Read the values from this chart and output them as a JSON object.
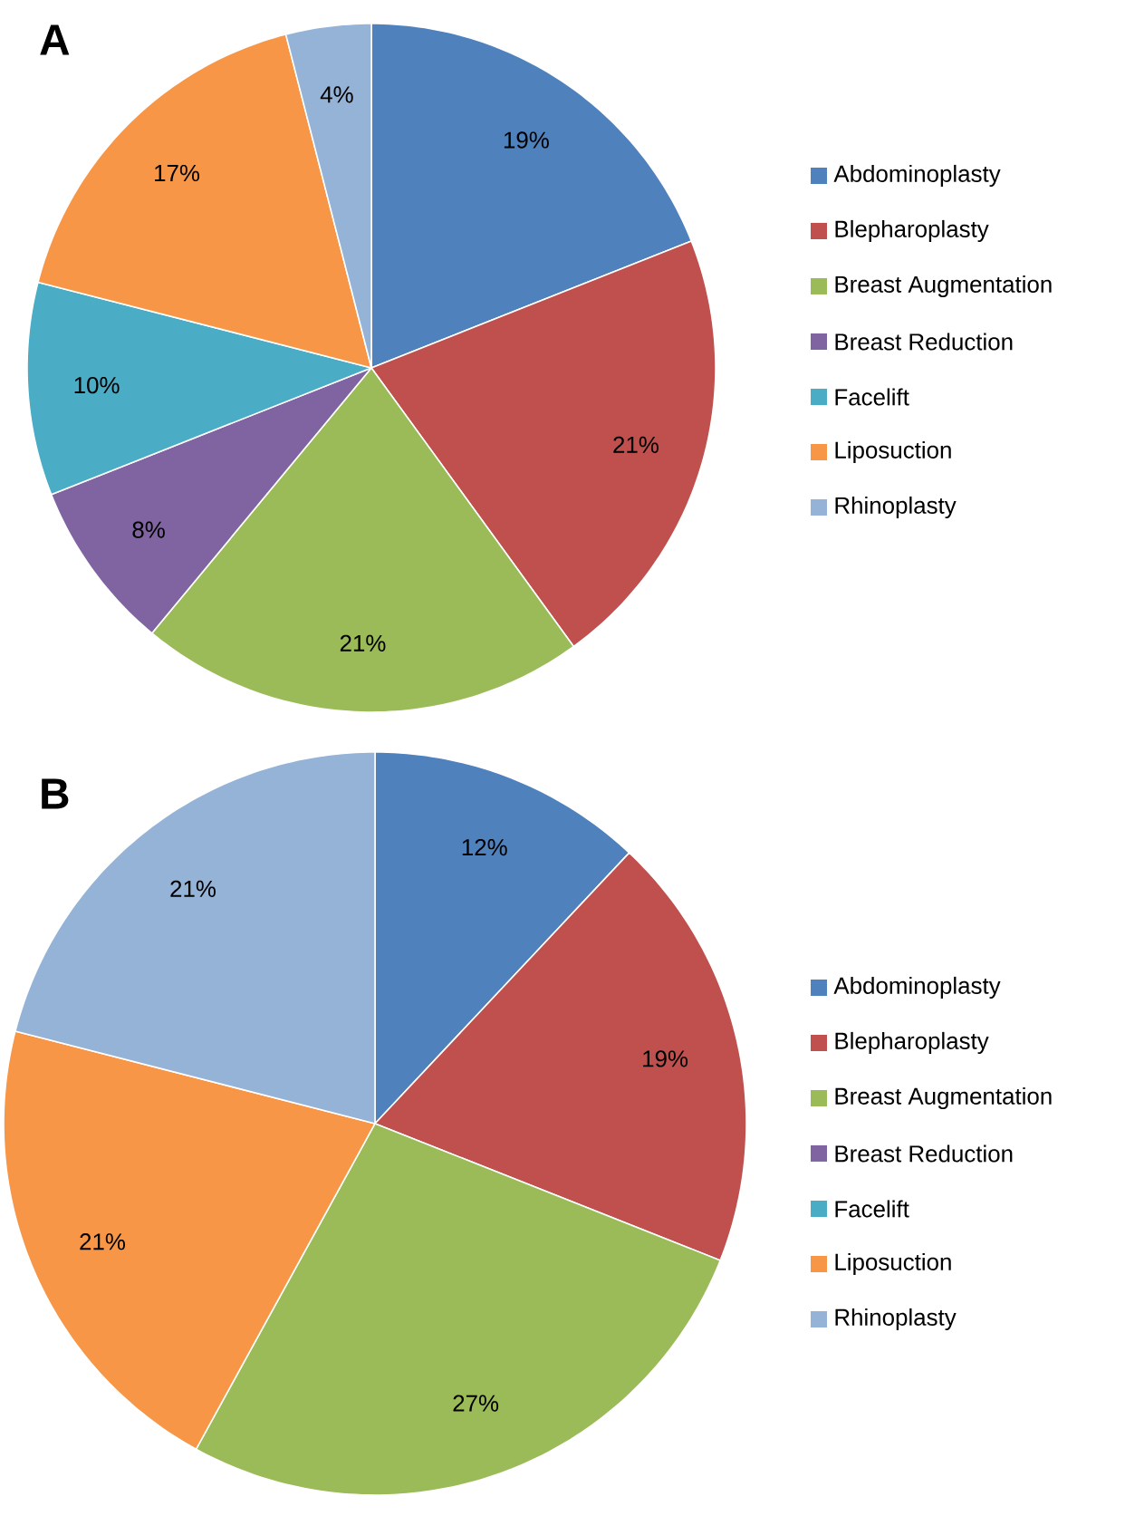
{
  "chart_data": [
    {
      "type": "pie",
      "title": "A",
      "categories": [
        "Abdominoplasty",
        "Blepharoplasty",
        "Breast Augmentation",
        "Breast Reduction",
        "Facelift",
        "Liposuction",
        "Rhinoplasty"
      ],
      "values": [
        19,
        21,
        21,
        8,
        10,
        17,
        4
      ],
      "value_labels": [
        "19%",
        "21%",
        "21%",
        "8%",
        "10%",
        "17%",
        "4%"
      ],
      "colors": [
        "#4f81bd",
        "#c0504d",
        "#9bbb59",
        "#8064a2",
        "#4bacc6",
        "#f79646",
        "#95b3d7"
      ],
      "legend": "right"
    },
    {
      "type": "pie",
      "title": "B",
      "categories": [
        "Abdominoplasty",
        "Blepharoplasty",
        "Breast Augmentation",
        "Breast Reduction",
        "Facelift",
        "Liposuction",
        "Rhinoplasty"
      ],
      "values": [
        12,
        19,
        27,
        0,
        0,
        21,
        21
      ],
      "value_labels": [
        "12%",
        "19%",
        "27%",
        null,
        null,
        "21%",
        "21%"
      ],
      "colors": [
        "#4f81bd",
        "#c0504d",
        "#9bbb59",
        "#8064a2",
        "#4bacc6",
        "#f79646",
        "#95b3d7"
      ],
      "legend": "right"
    }
  ]
}
